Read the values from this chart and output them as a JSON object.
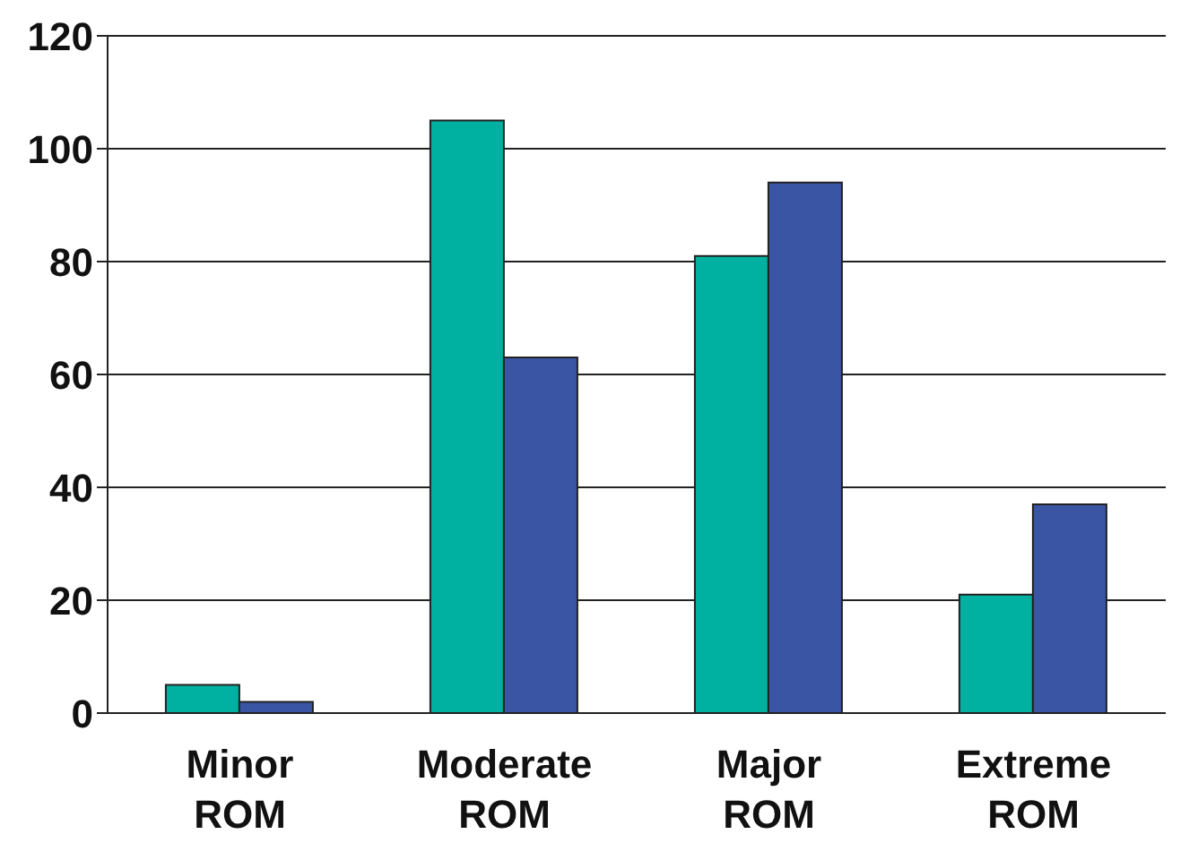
{
  "chart_data": {
    "type": "bar",
    "categories": [
      "Minor ROM",
      "Moderate ROM",
      "Major ROM",
      "Extreme ROM"
    ],
    "series": [
      {
        "color": "#00b0a0",
        "values": [
          5,
          105,
          81,
          21
        ]
      },
      {
        "color": "#3a55a4",
        "values": [
          2,
          63,
          94,
          37
        ]
      }
    ],
    "ylim": [
      0,
      120
    ],
    "yticks": [
      0,
      20,
      40,
      60,
      80,
      100,
      120
    ],
    "grid": "y"
  }
}
